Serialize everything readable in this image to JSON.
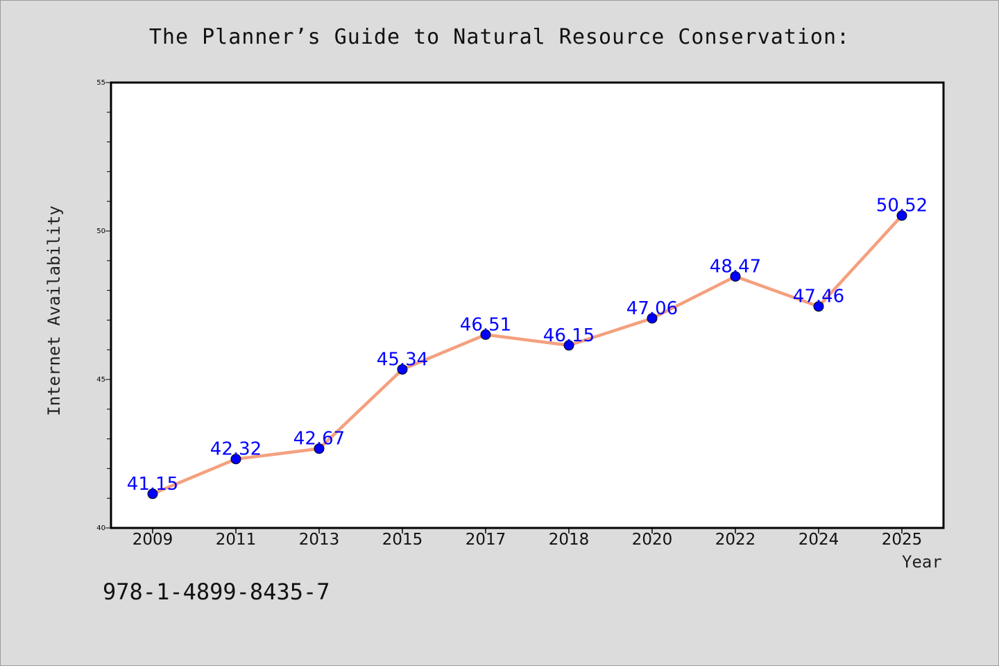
{
  "colors": {
    "background": "#dcdcdc",
    "plot_background": "#ffffff",
    "line": "#f4a07e",
    "marker": "#0000ff",
    "data_label": "#0000ff"
  },
  "isbn": "978-1-4899-8435-7",
  "chart_data": {
    "type": "line",
    "title": "The Planner’s Guide to Natural Resource Conservation:",
    "xlabel": "Year",
    "ylabel": "Internet Availability",
    "categories": [
      "2009",
      "2011",
      "2013",
      "2015",
      "2017",
      "2018",
      "2020",
      "2022",
      "2024",
      "2025"
    ],
    "series": [
      {
        "values": [
          41.15,
          42.32,
          42.67,
          45.34,
          46.51,
          46.15,
          47.06,
          48.47,
          47.46,
          50.52
        ],
        "labels": [
          "41.15",
          "42.32",
          "42.67",
          "45.34",
          "46.51",
          "46.15",
          "47.06",
          "48.47",
          "47.46",
          "50.52"
        ]
      }
    ],
    "ylim": [
      40,
      55
    ],
    "yticks": [
      40,
      45,
      50,
      55
    ],
    "ytick_labels": [
      "40",
      "45",
      "50",
      "55"
    ],
    "y_minor_step": 1,
    "grid": false,
    "legend": "none"
  }
}
